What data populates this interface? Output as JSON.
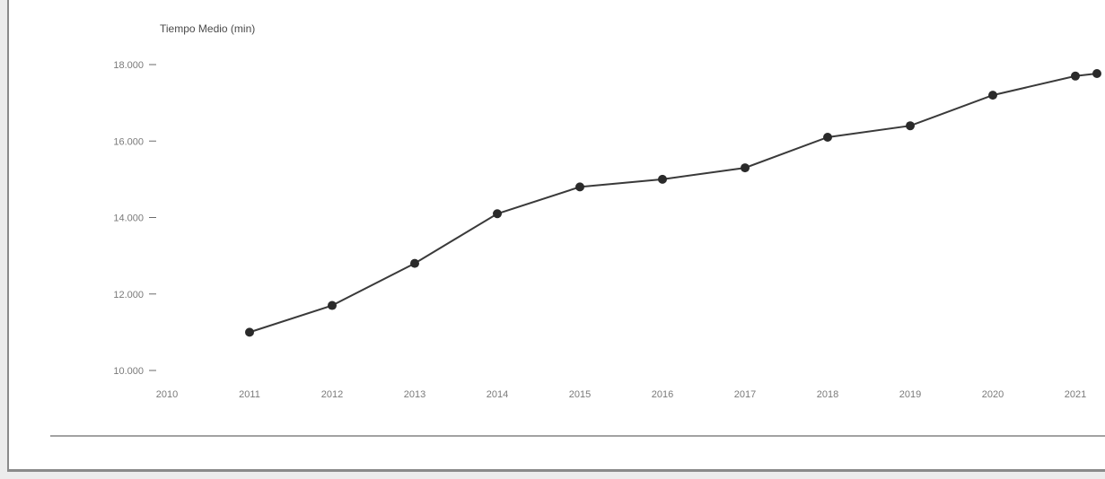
{
  "chart_data": {
    "type": "line",
    "title": "Tiempo Medio (min)",
    "xlabel": "",
    "ylabel": "",
    "categories": [
      "2010",
      "2011",
      "2012",
      "2013",
      "2014",
      "2015",
      "2016",
      "2017",
      "2018",
      "2019",
      "2020",
      "2021"
    ],
    "y_ticks": [
      "10.000",
      "12.000",
      "14.000",
      "16.000",
      "18.000"
    ],
    "ylim": [
      10,
      18
    ],
    "grid": false,
    "series": [
      {
        "values": [
          null,
          11,
          11.7,
          12.8,
          14.1,
          14.8,
          15,
          15.3,
          16.1,
          16.4,
          17.2,
          17.7
        ]
      }
    ],
    "last_point_value": 18
  },
  "colors": {
    "line": "#3a3a3a",
    "marker": "#2a2a2a",
    "axis": "#6a6a6a",
    "tick": "#7a7a7a"
  }
}
